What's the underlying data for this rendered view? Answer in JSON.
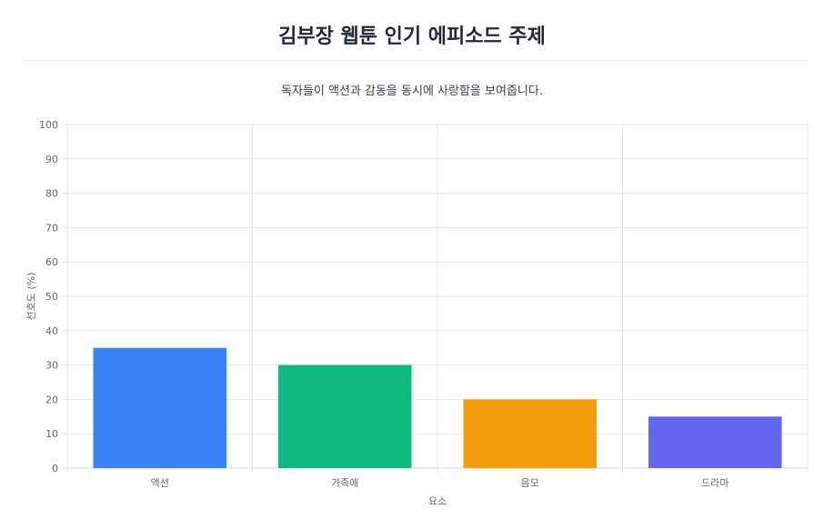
{
  "title": "김부장 웹툰 인기 에피소드 주제",
  "subtitle": "독자들이 액션과 감동을 동시에 사랑함을 보여줍니다.",
  "chart_data": {
    "type": "bar",
    "categories": [
      "액션",
      "가족애",
      "음모",
      "드라마"
    ],
    "values": [
      35,
      30,
      20,
      15
    ],
    "colors": [
      "#3b82f6",
      "#10b981",
      "#f59e0b",
      "#6366f1"
    ],
    "xlabel": "요소",
    "ylabel": "선호도 (%)",
    "ylim": [
      0,
      100
    ],
    "yticks": [
      0,
      10,
      20,
      30,
      40,
      50,
      60,
      70,
      80,
      90,
      100
    ],
    "grid": true,
    "legend": "none"
  }
}
